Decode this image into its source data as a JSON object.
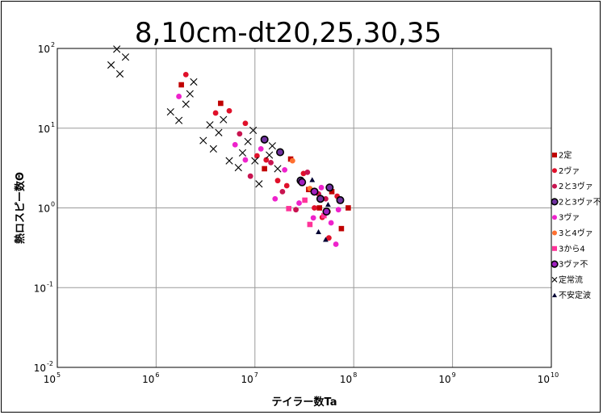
{
  "chart_data": {
    "type": "scatter",
    "title": "8,10cm-dt20,25,30,35",
    "xlabel": "テイラー数Ta",
    "ylabel": "熱ロスピー数Θ",
    "x_scale": "log",
    "y_scale": "log",
    "xlim": [
      100000,
      10000000000
    ],
    "ylim": [
      0.01,
      100
    ],
    "x_ticks": [
      {
        "base": "10",
        "exp": "5",
        "value": 100000
      },
      {
        "base": "10",
        "exp": "6",
        "value": 1000000
      },
      {
        "base": "10",
        "exp": "7",
        "value": 10000000
      },
      {
        "base": "10",
        "exp": "8",
        "value": 100000000
      },
      {
        "base": "10",
        "exp": "9",
        "value": 1000000000
      },
      {
        "base": "10",
        "exp": "10",
        "value": 10000000000
      }
    ],
    "y_ticks": [
      {
        "base": "10",
        "exp": "-2",
        "value": 0.01
      },
      {
        "base": "10",
        "exp": "-1",
        "value": 0.1
      },
      {
        "base": "10",
        "exp": "0",
        "value": 1
      },
      {
        "base": "10",
        "exp": "1",
        "value": 10
      },
      {
        "base": "10",
        "exp": "2",
        "value": 100
      }
    ],
    "grid": true,
    "legend_position": "right",
    "series": [
      {
        "name": "2定",
        "marker": "square",
        "color": "#c00000",
        "stroke": "none",
        "points": [
          [
            1800000,
            35
          ],
          [
            4500000,
            20.5
          ],
          [
            12500000,
            3.1
          ],
          [
            23000000,
            4.1
          ],
          [
            35000000,
            1.7
          ],
          [
            45000000,
            1.0
          ],
          [
            60000000,
            1.6
          ],
          [
            75000000,
            0.55
          ],
          [
            88000000,
            1.0
          ]
        ]
      },
      {
        "name": "2ヴァ",
        "marker": "circle",
        "color": "#e0102a",
        "stroke": "none",
        "points": [
          [
            2000000,
            47
          ],
          [
            4000000,
            15.5
          ],
          [
            5500000,
            16.5
          ],
          [
            8000000,
            11.5
          ],
          [
            10500000,
            4.5
          ],
          [
            13000000,
            4.0
          ],
          [
            17000000,
            2.2
          ],
          [
            21000000,
            1.9
          ],
          [
            31000000,
            2.7
          ],
          [
            40000000,
            1.0
          ],
          [
            48000000,
            0.76
          ],
          [
            56000000,
            0.42
          ],
          [
            68000000,
            1.4
          ]
        ]
      },
      {
        "name": "2と3ヴァ",
        "marker": "circle",
        "color": "#c81450",
        "stroke": "none",
        "points": [
          [
            7000000,
            8.5
          ],
          [
            9000000,
            2.5
          ],
          [
            14500000,
            3.7
          ],
          [
            19000000,
            1.6
          ],
          [
            26000000,
            0.95
          ],
          [
            34000000,
            2.8
          ],
          [
            44000000,
            1.5
          ],
          [
            52000000,
            1.3
          ]
        ]
      },
      {
        "name": "2と3ヴァ不",
        "marker": "circle",
        "color": "#7030a0",
        "stroke": "#000000",
        "points": [
          [
            12500000,
            7.2
          ],
          [
            18000000,
            5.0
          ],
          [
            29000000,
            2.2
          ],
          [
            46000000,
            1.3
          ],
          [
            57000000,
            1.8
          ],
          [
            73000000,
            1.25
          ]
        ]
      },
      {
        "name": "3ヴァ",
        "marker": "circle",
        "color": "#ee22cc",
        "stroke": "none",
        "points": [
          [
            1700000,
            25
          ],
          [
            6300000,
            6.2
          ],
          [
            8000000,
            4.0
          ],
          [
            11500000,
            5.5
          ],
          [
            16000000,
            1.3
          ],
          [
            20000000,
            3.0
          ],
          [
            28000000,
            1.15
          ],
          [
            39000000,
            0.75
          ],
          [
            47000000,
            1.8
          ],
          [
            59000000,
            0.65
          ],
          [
            66000000,
            0.35
          ],
          [
            70000000,
            0.95
          ]
        ]
      },
      {
        "name": "3と4ヴァ",
        "marker": "circle",
        "color": "#ff7030",
        "stroke": "none",
        "points": [
          [
            24000000,
            3.9
          ],
          [
            36000000,
            1.75
          ],
          [
            55000000,
            0.9
          ]
        ]
      },
      {
        "name": "3から4",
        "marker": "square",
        "color": "#ff3399",
        "stroke": "none",
        "points": [
          [
            22000000,
            0.98
          ],
          [
            32000000,
            1.25
          ],
          [
            36000000,
            0.62
          ],
          [
            50000000,
            0.8
          ]
        ]
      },
      {
        "name": "3ヴァ不",
        "marker": "circle",
        "color": "#a020c0",
        "stroke": "#000000",
        "points": [
          [
            30000000,
            2.1
          ],
          [
            40000000,
            1.6
          ],
          [
            53000000,
            0.9
          ]
        ]
      },
      {
        "name": "定常流",
        "marker": "x",
        "color": "#000000",
        "stroke": "none",
        "points": [
          [
            350000,
            62
          ],
          [
            400000,
            98
          ],
          [
            430000,
            48
          ],
          [
            490000,
            78
          ],
          [
            1400000,
            16
          ],
          [
            1700000,
            12.5
          ],
          [
            2000000,
            20
          ],
          [
            2200000,
            27
          ],
          [
            2400000,
            38
          ],
          [
            3000000,
            7.0
          ],
          [
            3500000,
            11
          ],
          [
            3800000,
            5.5
          ],
          [
            4300000,
            8.8
          ],
          [
            4800000,
            12.8
          ],
          [
            5500000,
            3.9
          ],
          [
            6800000,
            3.2
          ],
          [
            7500000,
            4.9
          ],
          [
            8500000,
            6.8
          ],
          [
            9600000,
            9.4
          ],
          [
            10000000,
            3.9
          ],
          [
            11000000,
            2.0
          ],
          [
            14000000,
            4.6
          ],
          [
            15000000,
            6.0
          ],
          [
            17000000,
            3.1
          ]
        ]
      },
      {
        "name": "不安定波",
        "marker": "triangle",
        "color": "#000033",
        "stroke": "none",
        "points": [
          [
            38000000,
            2.25
          ],
          [
            44000000,
            0.5
          ],
          [
            52000000,
            0.4
          ],
          [
            55000000,
            1.1
          ]
        ]
      }
    ]
  }
}
